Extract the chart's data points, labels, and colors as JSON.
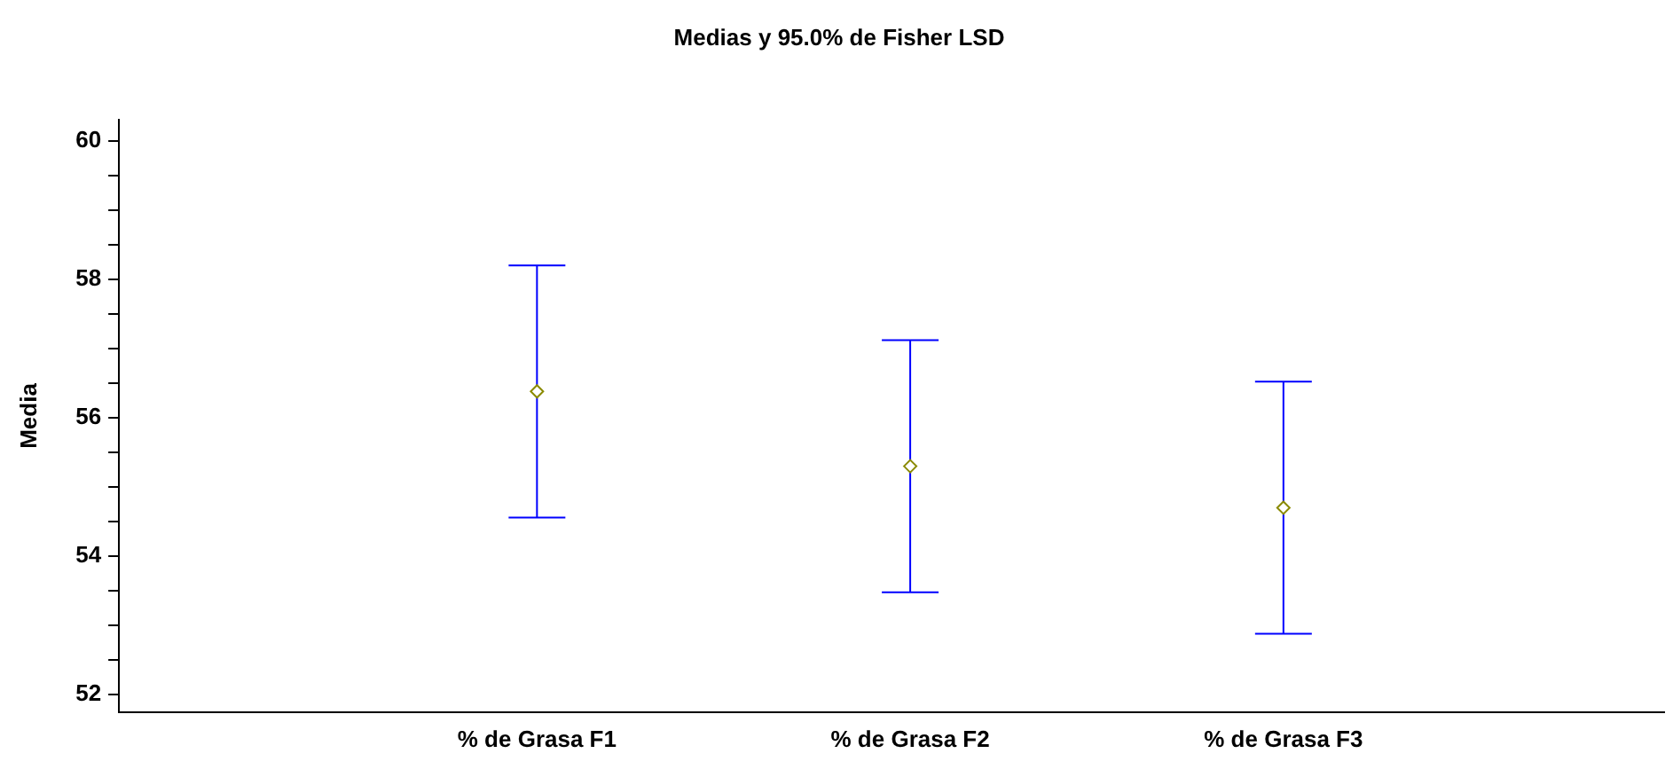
{
  "chart_data": {
    "type": "scatter",
    "title": "Medias y 95.0% de Fisher LSD",
    "ylabel": "Media",
    "categories": [
      "% de Grasa F1",
      "% de Grasa F2",
      "% de Grasa F3"
    ],
    "series": [
      {
        "color": "#8a8a00",
        "values": [
          56.38,
          55.3,
          54.7
        ],
        "errors": [
          1.82,
          1.82,
          1.82
        ]
      }
    ],
    "ylim": [
      51.75,
      60.3
    ],
    "yticks": [
      52,
      {
        "value": 52.5,
        "label": null
      },
      {
        "value": 53,
        "label": null
      },
      {
        "value": 53.5,
        "label": null
      },
      54,
      {
        "value": 54.5,
        "label": null
      },
      {
        "value": 55,
        "label": null
      },
      {
        "value": 55.5,
        "label": null
      },
      56,
      {
        "value": 56.5,
        "label": null
      },
      {
        "value": 57,
        "label": null
      },
      {
        "value": 57.5,
        "label": null
      },
      58,
      {
        "value": 58.5,
        "label": null
      },
      {
        "value": 59,
        "label": null
      },
      {
        "value": 59.5,
        "label": null
      },
      60
    ],
    "grid": false,
    "legend": false,
    "marker": "diamond"
  }
}
